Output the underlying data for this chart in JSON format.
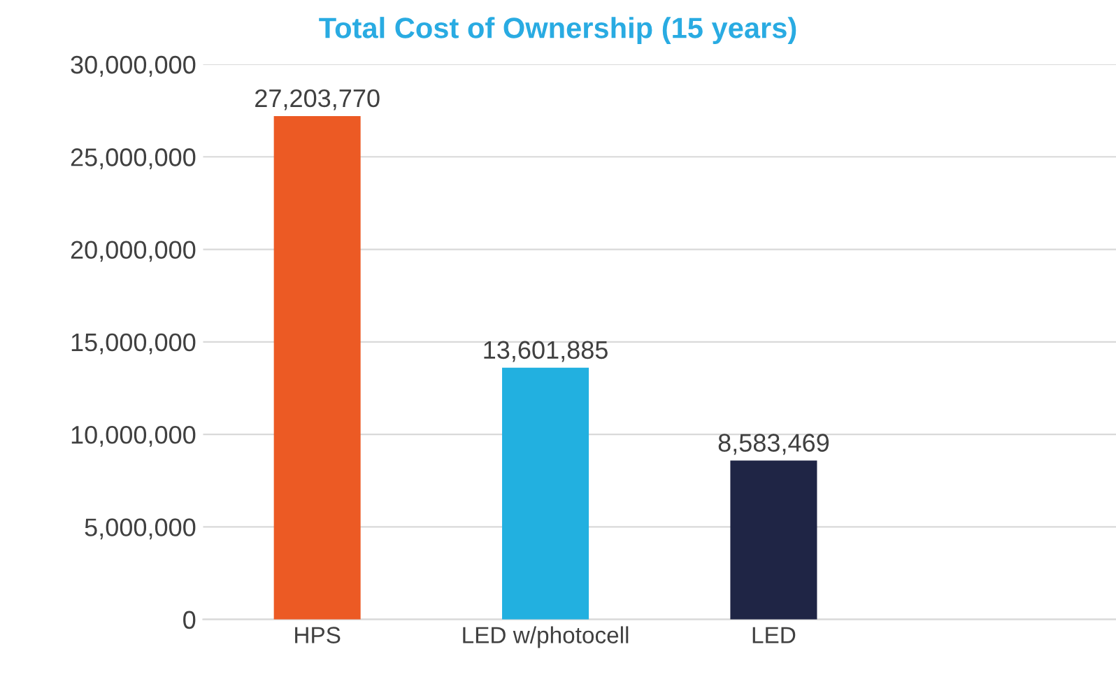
{
  "chart_data": {
    "type": "bar",
    "title": "Total Cost of Ownership (15 years)",
    "categories": [
      "HPS",
      "LED w/photocell",
      "LED",
      null
    ],
    "values": [
      27203770,
      13601885,
      8583469,
      null
    ],
    "colors": [
      "#ec5a24",
      "#22b0e0",
      "#1f2545",
      "#1f2545"
    ],
    "ylim": [
      0,
      30000000
    ],
    "yticks": [
      {
        "value": 0,
        "label": "0"
      },
      {
        "value": 5000000,
        "label": "5,000,000"
      },
      {
        "value": 10000000,
        "label": "10,000,000"
      },
      {
        "value": 15000000,
        "label": "15,000,000"
      },
      {
        "value": 20000000,
        "label": "20,000,000"
      },
      {
        "value": 25000000,
        "label": "25,000,000"
      },
      {
        "value": 30000000,
        "label": "30,000,000"
      }
    ],
    "value_labels": [
      "27,203,770",
      "13,601,885",
      "8,583,469",
      null
    ],
    "grid": "y",
    "legend": false
  }
}
